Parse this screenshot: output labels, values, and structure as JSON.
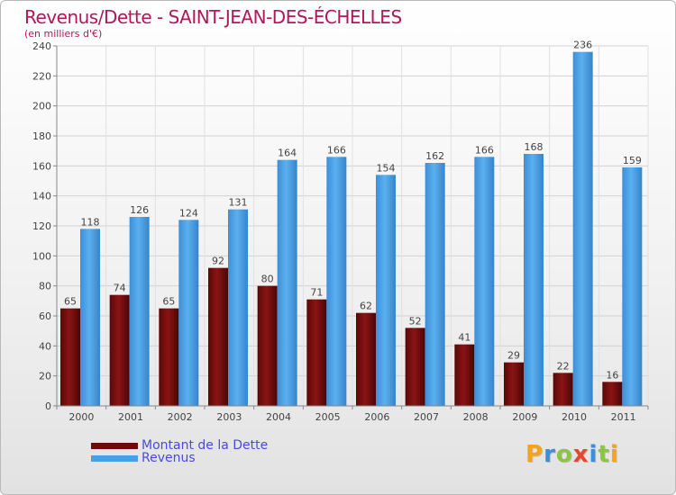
{
  "header": {
    "title": "Revenus/Dette - SAINT-JEAN-DES-ÉCHELLES",
    "subtitle": "(en milliers d'€)"
  },
  "legend": {
    "items": [
      {
        "label": "Montant de la Dette",
        "color": "#6b0b0b"
      },
      {
        "label": "Revenus",
        "color": "#4a9fe3"
      }
    ]
  },
  "logo": {
    "letters": [
      "P",
      "r",
      "o",
      "x",
      "i",
      "t",
      "i"
    ],
    "colors": [
      "#f7a21b",
      "#3a8fd6",
      "#8cc63f",
      "#e6462b",
      "#3a8fd6",
      "#8cc63f",
      "#f7a21b"
    ]
  },
  "chart_data": {
    "type": "bar",
    "categories": [
      "2000",
      "2001",
      "2002",
      "2003",
      "2004",
      "2005",
      "2006",
      "2007",
      "2008",
      "2009",
      "2010",
      "2011"
    ],
    "series": [
      {
        "name": "Montant de la Dette",
        "color": "#6b0b0b",
        "values": [
          65,
          74,
          65,
          92,
          80,
          71,
          62,
          52,
          41,
          29,
          22,
          16
        ]
      },
      {
        "name": "Revenus",
        "color": "#4a9fe3",
        "values": [
          118,
          126,
          124,
          131,
          164,
          166,
          154,
          162,
          166,
          168,
          236,
          159
        ]
      }
    ],
    "ylim": [
      0,
      240
    ],
    "yticks": [
      0,
      20,
      40,
      60,
      80,
      100,
      120,
      140,
      160,
      180,
      200,
      220,
      240
    ],
    "grid": true,
    "legend_position": "bottom-left"
  }
}
